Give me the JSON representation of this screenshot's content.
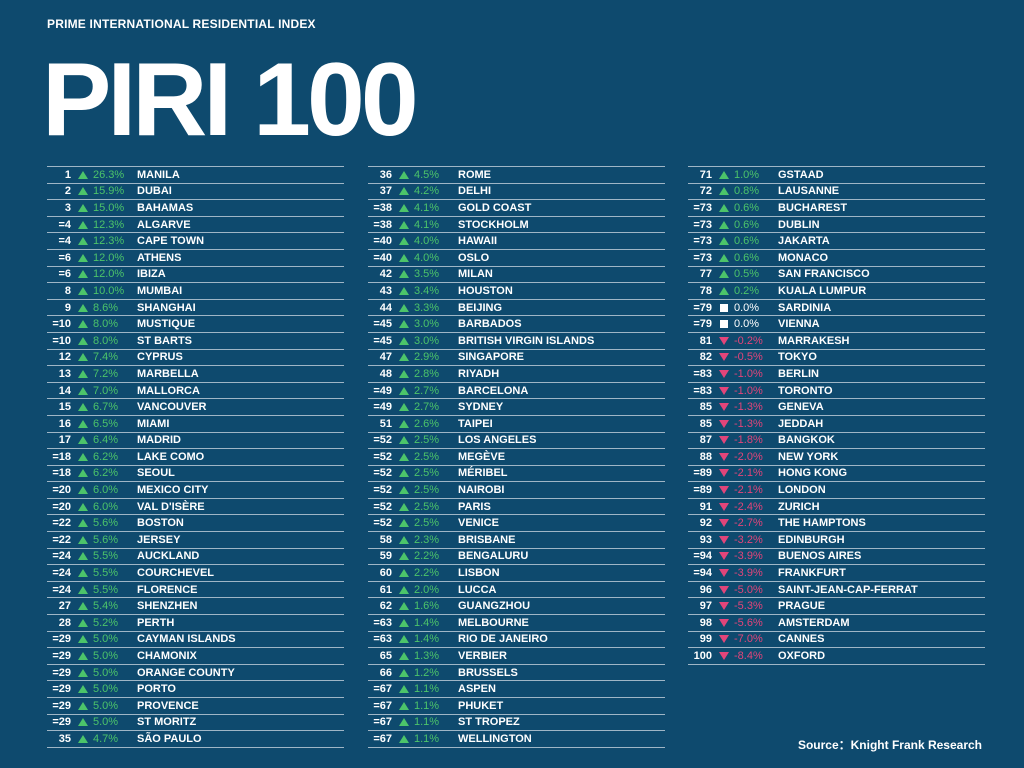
{
  "header": {
    "subtitle": "PRIME INTERNATIONAL RESIDENTIAL INDEX",
    "title": "PIRI 100"
  },
  "colors": {
    "background": "#0e4a6e",
    "up": "#4cc46a",
    "down": "#e2457a",
    "flat": "#ffffff"
  },
  "columns": [
    [
      {
        "rank": "1",
        "change": "26.3%",
        "dir": "up",
        "city": "MANILA"
      },
      {
        "rank": "2",
        "change": "15.9%",
        "dir": "up",
        "city": "DUBAI"
      },
      {
        "rank": "3",
        "change": "15.0%",
        "dir": "up",
        "city": "BAHAMAS"
      },
      {
        "rank": "=4",
        "change": "12.3%",
        "dir": "up",
        "city": "ALGARVE"
      },
      {
        "rank": "=4",
        "change": "12.3%",
        "dir": "up",
        "city": "CAPE TOWN"
      },
      {
        "rank": "=6",
        "change": "12.0%",
        "dir": "up",
        "city": "ATHENS"
      },
      {
        "rank": "=6",
        "change": "12.0%",
        "dir": "up",
        "city": "IBIZA"
      },
      {
        "rank": "8",
        "change": "10.0%",
        "dir": "up",
        "city": "MUMBAI"
      },
      {
        "rank": "9",
        "change": "8.6%",
        "dir": "up",
        "city": "SHANGHAI"
      },
      {
        "rank": "=10",
        "change": "8.0%",
        "dir": "up",
        "city": "MUSTIQUE"
      },
      {
        "rank": "=10",
        "change": "8.0%",
        "dir": "up",
        "city": "ST BARTS"
      },
      {
        "rank": "12",
        "change": "7.4%",
        "dir": "up",
        "city": "CYPRUS"
      },
      {
        "rank": "13",
        "change": "7.2%",
        "dir": "up",
        "city": "MARBELLA"
      },
      {
        "rank": "14",
        "change": "7.0%",
        "dir": "up",
        "city": "MALLORCA"
      },
      {
        "rank": "15",
        "change": "6.7%",
        "dir": "up",
        "city": "VANCOUVER"
      },
      {
        "rank": "16",
        "change": "6.5%",
        "dir": "up",
        "city": "MIAMI"
      },
      {
        "rank": "17",
        "change": "6.4%",
        "dir": "up",
        "city": "MADRID"
      },
      {
        "rank": "=18",
        "change": "6.2%",
        "dir": "up",
        "city": "LAKE COMO"
      },
      {
        "rank": "=18",
        "change": "6.2%",
        "dir": "up",
        "city": "SEOUL"
      },
      {
        "rank": "=20",
        "change": "6.0%",
        "dir": "up",
        "city": "MEXICO CITY"
      },
      {
        "rank": "=20",
        "change": "6.0%",
        "dir": "up",
        "city": "VAL D'ISÈRE"
      },
      {
        "rank": "=22",
        "change": "5.6%",
        "dir": "up",
        "city": "BOSTON"
      },
      {
        "rank": "=22",
        "change": "5.6%",
        "dir": "up",
        "city": "JERSEY"
      },
      {
        "rank": "=24",
        "change": "5.5%",
        "dir": "up",
        "city": "AUCKLAND"
      },
      {
        "rank": "=24",
        "change": "5.5%",
        "dir": "up",
        "city": "COURCHEVEL"
      },
      {
        "rank": "=24",
        "change": "5.5%",
        "dir": "up",
        "city": "FLORENCE"
      },
      {
        "rank": "27",
        "change": "5.4%",
        "dir": "up",
        "city": "SHENZHEN"
      },
      {
        "rank": "28",
        "change": "5.2%",
        "dir": "up",
        "city": "PERTH"
      },
      {
        "rank": "=29",
        "change": "5.0%",
        "dir": "up",
        "city": "CAYMAN ISLANDS"
      },
      {
        "rank": "=29",
        "change": "5.0%",
        "dir": "up",
        "city": "CHAMONIX"
      },
      {
        "rank": "=29",
        "change": "5.0%",
        "dir": "up",
        "city": "ORANGE COUNTY"
      },
      {
        "rank": "=29",
        "change": "5.0%",
        "dir": "up",
        "city": "PORTO"
      },
      {
        "rank": "=29",
        "change": "5.0%",
        "dir": "up",
        "city": "PROVENCE"
      },
      {
        "rank": "=29",
        "change": "5.0%",
        "dir": "up",
        "city": "ST MORITZ"
      },
      {
        "rank": "35",
        "change": "4.7%",
        "dir": "up",
        "city": "SÃO PAULO"
      }
    ],
    [
      {
        "rank": "36",
        "change": "4.5%",
        "dir": "up",
        "city": "ROME"
      },
      {
        "rank": "37",
        "change": "4.2%",
        "dir": "up",
        "city": "DELHI"
      },
      {
        "rank": "=38",
        "change": "4.1%",
        "dir": "up",
        "city": "GOLD COAST"
      },
      {
        "rank": "=38",
        "change": "4.1%",
        "dir": "up",
        "city": "STOCKHOLM"
      },
      {
        "rank": "=40",
        "change": "4.0%",
        "dir": "up",
        "city": "HAWAII"
      },
      {
        "rank": "=40",
        "change": "4.0%",
        "dir": "up",
        "city": "OSLO"
      },
      {
        "rank": "42",
        "change": "3.5%",
        "dir": "up",
        "city": "MILAN"
      },
      {
        "rank": "43",
        "change": "3.4%",
        "dir": "up",
        "city": "HOUSTON"
      },
      {
        "rank": "44",
        "change": "3.3%",
        "dir": "up",
        "city": "BEIJING"
      },
      {
        "rank": "=45",
        "change": "3.0%",
        "dir": "up",
        "city": "BARBADOS"
      },
      {
        "rank": "=45",
        "change": "3.0%",
        "dir": "up",
        "city": "BRITISH VIRGIN ISLANDS"
      },
      {
        "rank": "47",
        "change": "2.9%",
        "dir": "up",
        "city": "SINGAPORE"
      },
      {
        "rank": "48",
        "change": "2.8%",
        "dir": "up",
        "city": "RIYADH"
      },
      {
        "rank": "=49",
        "change": "2.7%",
        "dir": "up",
        "city": "BARCELONA"
      },
      {
        "rank": "=49",
        "change": "2.7%",
        "dir": "up",
        "city": "SYDNEY"
      },
      {
        "rank": "51",
        "change": "2.6%",
        "dir": "up",
        "city": "TAIPEI"
      },
      {
        "rank": "=52",
        "change": "2.5%",
        "dir": "up",
        "city": "LOS ANGELES"
      },
      {
        "rank": "=52",
        "change": "2.5%",
        "dir": "up",
        "city": "MEGÈVE"
      },
      {
        "rank": "=52",
        "change": "2.5%",
        "dir": "up",
        "city": "MÉRIBEL"
      },
      {
        "rank": "=52",
        "change": "2.5%",
        "dir": "up",
        "city": "NAIROBI"
      },
      {
        "rank": "=52",
        "change": "2.5%",
        "dir": "up",
        "city": "PARIS"
      },
      {
        "rank": "=52",
        "change": "2.5%",
        "dir": "up",
        "city": "VENICE"
      },
      {
        "rank": "58",
        "change": "2.3%",
        "dir": "up",
        "city": "BRISBANE"
      },
      {
        "rank": "59",
        "change": "2.2%",
        "dir": "up",
        "city": "BENGALURU"
      },
      {
        "rank": "60",
        "change": "2.2%",
        "dir": "up",
        "city": "LISBON"
      },
      {
        "rank": "61",
        "change": "2.0%",
        "dir": "up",
        "city": "LUCCA"
      },
      {
        "rank": "62",
        "change": "1.6%",
        "dir": "up",
        "city": "GUANGZHOU"
      },
      {
        "rank": "=63",
        "change": "1.4%",
        "dir": "up",
        "city": "MELBOURNE"
      },
      {
        "rank": "=63",
        "change": "1.4%",
        "dir": "up",
        "city": "RIO DE JANEIRO"
      },
      {
        "rank": "65",
        "change": "1.3%",
        "dir": "up",
        "city": "VERBIER"
      },
      {
        "rank": "66",
        "change": "1.2%",
        "dir": "up",
        "city": "BRUSSELS"
      },
      {
        "rank": "=67",
        "change": "1.1%",
        "dir": "up",
        "city": "ASPEN"
      },
      {
        "rank": "=67",
        "change": "1.1%",
        "dir": "up",
        "city": "PHUKET"
      },
      {
        "rank": "=67",
        "change": "1.1%",
        "dir": "up",
        "city": "ST TROPEZ"
      },
      {
        "rank": "=67",
        "change": "1.1%",
        "dir": "up",
        "city": "WELLINGTON"
      }
    ],
    [
      {
        "rank": "71",
        "change": "1.0%",
        "dir": "up",
        "city": "GSTAAD"
      },
      {
        "rank": "72",
        "change": "0.8%",
        "dir": "up",
        "city": "LAUSANNE"
      },
      {
        "rank": "=73",
        "change": "0.6%",
        "dir": "up",
        "city": "BUCHAREST"
      },
      {
        "rank": "=73",
        "change": "0.6%",
        "dir": "up",
        "city": "DUBLIN"
      },
      {
        "rank": "=73",
        "change": "0.6%",
        "dir": "up",
        "city": "JAKARTA"
      },
      {
        "rank": "=73",
        "change": "0.6%",
        "dir": "up",
        "city": "MONACO"
      },
      {
        "rank": "77",
        "change": "0.5%",
        "dir": "up",
        "city": "SAN FRANCISCO"
      },
      {
        "rank": "78",
        "change": "0.2%",
        "dir": "up",
        "city": "KUALA LUMPUR"
      },
      {
        "rank": "=79",
        "change": "0.0%",
        "dir": "flat",
        "city": "SARDINIA"
      },
      {
        "rank": "=79",
        "change": "0.0%",
        "dir": "flat",
        "city": "VIENNA"
      },
      {
        "rank": "81",
        "change": "-0.2%",
        "dir": "down",
        "city": "MARRAKESH"
      },
      {
        "rank": "82",
        "change": "-0.5%",
        "dir": "down",
        "city": "TOKYO"
      },
      {
        "rank": "=83",
        "change": "-1.0%",
        "dir": "down",
        "city": "BERLIN"
      },
      {
        "rank": "=83",
        "change": "-1.0%",
        "dir": "down",
        "city": "TORONTO"
      },
      {
        "rank": "85",
        "change": "-1.3%",
        "dir": "down",
        "city": "GENEVA"
      },
      {
        "rank": "85",
        "change": "-1.3%",
        "dir": "down",
        "city": "JEDDAH"
      },
      {
        "rank": "87",
        "change": "-1.8%",
        "dir": "down",
        "city": "BANGKOK"
      },
      {
        "rank": "88",
        "change": "-2.0%",
        "dir": "down",
        "city": "NEW YORK"
      },
      {
        "rank": "=89",
        "change": "-2.1%",
        "dir": "down",
        "city": "HONG KONG"
      },
      {
        "rank": "=89",
        "change": "-2.1%",
        "dir": "down",
        "city": "LONDON"
      },
      {
        "rank": "91",
        "change": "-2.4%",
        "dir": "down",
        "city": "ZURICH"
      },
      {
        "rank": "92",
        "change": "-2.7%",
        "dir": "down",
        "city": "THE HAMPTONS"
      },
      {
        "rank": "93",
        "change": "-3.2%",
        "dir": "down",
        "city": "EDINBURGH"
      },
      {
        "rank": "=94",
        "change": "-3.9%",
        "dir": "down",
        "city": "BUENOS AIRES"
      },
      {
        "rank": "=94",
        "change": "-3.9%",
        "dir": "down",
        "city": "FRANKFURT"
      },
      {
        "rank": "96",
        "change": "-5.0%",
        "dir": "down",
        "city": "SAINT-JEAN-CAP-FERRAT"
      },
      {
        "rank": "97",
        "change": "-5.3%",
        "dir": "down",
        "city": "PRAGUE"
      },
      {
        "rank": "98",
        "change": "-5.6%",
        "dir": "down",
        "city": "AMSTERDAM"
      },
      {
        "rank": "99",
        "change": "-7.0%",
        "dir": "down",
        "city": "CANNES"
      },
      {
        "rank": "100",
        "change": "-8.4%",
        "dir": "down",
        "city": "OXFORD"
      }
    ]
  ],
  "footer": {
    "source": "Source：Knight Frank Research"
  }
}
